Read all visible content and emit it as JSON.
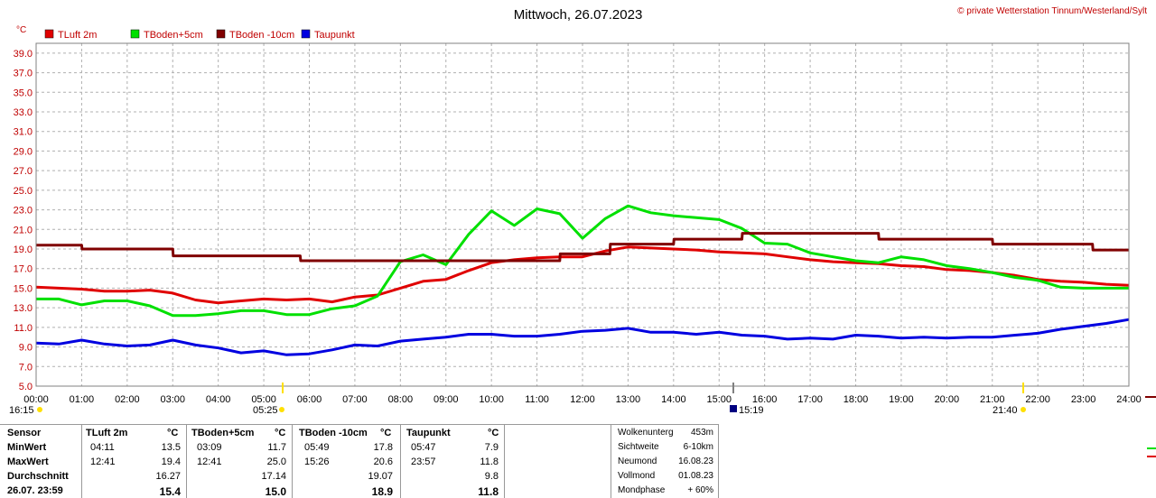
{
  "header": {
    "title": "Mittwoch, 26.07.2023",
    "copyright": "© private Wetterstation Tinnum/Westerland/Sylt",
    "unit": "°C"
  },
  "legend": [
    {
      "label": "TLuft 2m",
      "color": "#e00000"
    },
    {
      "label": "TBoden+5cm",
      "color": "#00e000"
    },
    {
      "label": "TBoden -10cm",
      "color": "#800000"
    },
    {
      "label": "Taupunkt",
      "color": "#0000e0"
    }
  ],
  "sun": {
    "sunrise": "05:25",
    "sunset": "21:40",
    "moon": "15:19",
    "left_time": "16:15"
  },
  "chart_data": {
    "type": "line",
    "xlabel": "",
    "ylabel": "°C",
    "xlim": [
      0,
      24
    ],
    "ylim": [
      5,
      40
    ],
    "x_ticks": [
      "00:00",
      "01:00",
      "02:00",
      "03:00",
      "04:00",
      "05:00",
      "06:00",
      "07:00",
      "08:00",
      "09:00",
      "10:00",
      "11:00",
      "12:00",
      "13:00",
      "14:00",
      "15:00",
      "16:00",
      "17:00",
      "18:00",
      "19:00",
      "20:00",
      "21:00",
      "22:00",
      "23:00",
      "24:00"
    ],
    "y_ticks": [
      "5.0",
      "7.0",
      "9.0",
      "11.0",
      "13.0",
      "15.0",
      "17.0",
      "19.0",
      "21.0",
      "23.0",
      "25.0",
      "27.0",
      "29.0",
      "31.0",
      "33.0",
      "35.0",
      "37.0",
      "39.0"
    ],
    "grid": true,
    "series": [
      {
        "name": "TLuft 2m",
        "color": "#e00000",
        "x": [
          0,
          0.5,
          1,
          1.5,
          2,
          2.5,
          3,
          3.5,
          4,
          4.5,
          5,
          5.5,
          6,
          6.5,
          7,
          7.5,
          8,
          8.5,
          9,
          9.5,
          10,
          10.5,
          11,
          11.5,
          12,
          12.5,
          13,
          13.5,
          14,
          14.5,
          15,
          15.5,
          16,
          16.5,
          17,
          17.5,
          18,
          18.5,
          19,
          19.5,
          20,
          20.5,
          21,
          21.5,
          22,
          22.5,
          23,
          23.5,
          24
        ],
        "y": [
          15.1,
          15.0,
          14.9,
          14.7,
          14.7,
          14.8,
          14.5,
          13.8,
          13.5,
          13.7,
          13.9,
          13.8,
          13.9,
          13.6,
          14.1,
          14.3,
          15.0,
          15.7,
          15.9,
          16.8,
          17.6,
          17.9,
          18.1,
          18.2,
          18.2,
          18.8,
          19.2,
          19.1,
          19.0,
          18.9,
          18.7,
          18.6,
          18.5,
          18.2,
          17.9,
          17.7,
          17.6,
          17.5,
          17.3,
          17.2,
          16.9,
          16.8,
          16.6,
          16.3,
          15.9,
          15.7,
          15.6,
          15.4,
          15.3
        ]
      },
      {
        "name": "TBoden+5cm",
        "color": "#00e000",
        "x": [
          0,
          0.5,
          1,
          1.5,
          2,
          2.5,
          3,
          3.5,
          4,
          4.5,
          5,
          5.5,
          6,
          6.5,
          7,
          7.5,
          8,
          8.5,
          9,
          9.5,
          10,
          10.5,
          11,
          11.5,
          12,
          12.5,
          13,
          13.5,
          14,
          14.5,
          15,
          15.5,
          16,
          16.5,
          17,
          17.5,
          18,
          18.5,
          19,
          19.5,
          20,
          20.5,
          21,
          21.5,
          22,
          22.5,
          23,
          23.5,
          24
        ],
        "y": [
          13.9,
          13.9,
          13.3,
          13.7,
          13.7,
          13.2,
          12.2,
          12.2,
          12.4,
          12.7,
          12.7,
          12.3,
          12.3,
          12.9,
          13.2,
          14.2,
          17.7,
          18.4,
          17.4,
          20.5,
          22.9,
          21.4,
          23.1,
          22.6,
          20.1,
          22.1,
          23.4,
          22.7,
          22.4,
          22.2,
          22.0,
          21.1,
          19.6,
          19.5,
          18.6,
          18.2,
          17.8,
          17.6,
          18.2,
          17.9,
          17.3,
          17.0,
          16.6,
          16.1,
          15.8,
          15.1,
          15.0,
          15.0,
          15.0
        ]
      },
      {
        "name": "TBoden -10cm",
        "color": "#800000",
        "x": [
          0,
          1,
          1.01,
          3,
          3.01,
          5.8,
          5.81,
          9.7,
          9.71,
          11.5,
          11.51,
          12.6,
          12.61,
          14,
          14.01,
          15.5,
          15.51,
          16,
          16.01,
          18.5,
          18.51,
          21,
          21.01,
          23.2,
          23.21,
          24
        ],
        "y": [
          19.4,
          19.4,
          19.0,
          19.0,
          18.3,
          18.3,
          17.8,
          17.8,
          17.8,
          17.8,
          18.5,
          18.5,
          19.5,
          19.5,
          20.0,
          20.0,
          20.6,
          20.6,
          20.6,
          20.6,
          20.0,
          20.0,
          19.5,
          19.5,
          18.9,
          18.9
        ]
      },
      {
        "name": "Taupunkt",
        "color": "#0000e0",
        "x": [
          0,
          0.5,
          1,
          1.5,
          2,
          2.5,
          3,
          3.5,
          4,
          4.5,
          5,
          5.5,
          6,
          6.5,
          7,
          7.5,
          8,
          8.5,
          9,
          9.5,
          10,
          10.5,
          11,
          11.5,
          12,
          12.5,
          13,
          13.5,
          14,
          14.5,
          15,
          15.5,
          16,
          16.5,
          17,
          17.5,
          18,
          18.5,
          19,
          19.5,
          20,
          20.5,
          21,
          21.5,
          22,
          22.5,
          23,
          23.5,
          24
        ],
        "y": [
          9.4,
          9.3,
          9.7,
          9.3,
          9.1,
          9.2,
          9.7,
          9.2,
          8.9,
          8.4,
          8.6,
          8.2,
          8.3,
          8.7,
          9.2,
          9.1,
          9.6,
          9.8,
          10.0,
          10.3,
          10.3,
          10.1,
          10.1,
          10.3,
          10.6,
          10.7,
          10.9,
          10.5,
          10.5,
          10.3,
          10.5,
          10.2,
          10.1,
          9.8,
          9.9,
          9.8,
          10.2,
          10.1,
          9.9,
          10.0,
          9.9,
          10.0,
          10.0,
          10.2,
          10.4,
          10.8,
          11.1,
          11.4,
          11.8
        ]
      }
    ]
  },
  "stats": {
    "headers": {
      "sensor": "Sensor",
      "c1": "TLuft 2m",
      "u1": "°C",
      "c2": "TBoden+5cm",
      "u2": "°C",
      "c3": "TBoden -10cm",
      "u3": "°C",
      "c4": "Taupunkt",
      "u4": "°C"
    },
    "rows": [
      {
        "label": "MinWert",
        "t1": "04:11",
        "v1": "13.5",
        "t2": "03:09",
        "v2": "11.7",
        "t3": "05:49",
        "v3": "17.8",
        "t4": "05:47",
        "v4": "7.9"
      },
      {
        "label": "MaxWert",
        "t1": "12:41",
        "v1": "19.4",
        "t2": "12:41",
        "v2": "25.0",
        "t3": "15:26",
        "v3": "20.6",
        "t4": "23:57",
        "v4": "11.8"
      },
      {
        "label": "Durchschnitt",
        "t1": "",
        "v1": "16.27",
        "t2": "",
        "v2": "17.14",
        "t3": "",
        "v3": "19.07",
        "t4": "",
        "v4": "9.8"
      },
      {
        "label": "26.07.  23:59",
        "t1": "",
        "v1": "15.4",
        "t2": "",
        "v2": "15.0",
        "t3": "",
        "v3": "18.9",
        "t4": "",
        "v4": "11.8"
      }
    ]
  },
  "info": [
    {
      "label": "Wolkenunterg",
      "value": "453m"
    },
    {
      "label": "Sichtweite",
      "value": "6-10km"
    },
    {
      "label": "Neumond",
      "value": "16.08.23"
    },
    {
      "label": "Vollmond",
      "value": "01.08.23"
    },
    {
      "label": "Mondphase",
      "value": "+ 60%"
    }
  ]
}
